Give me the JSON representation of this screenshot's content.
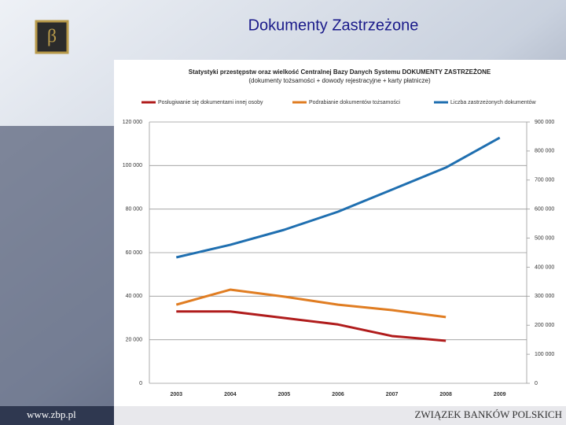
{
  "slide": {
    "title": "Dokumenty Zastrzeżone",
    "url": "www.zbp.pl",
    "footer": "Związek Banków Polskich"
  },
  "chart_data": {
    "type": "line",
    "title": "Statystyki przestępstw oraz wielkość Centralnej Bazy Danych Systemu DOKUMENTY ZASTRZEŻONE",
    "subtitle": "(dokumenty tożsamości + dowody rejestracyjne + karty płatnicze)",
    "categories": [
      "2003",
      "2004",
      "2005",
      "2006",
      "2007",
      "2008",
      "2009"
    ],
    "series": [
      {
        "name": "Posługiwanie się dokumentami innej osoby",
        "color": "#b01c1c",
        "values": [
          33000,
          33000,
          30000,
          27000,
          21700,
          19500,
          null
        ]
      },
      {
        "name": "Podrabianie dokumentów tożsamości",
        "color": "#e07d22",
        "values": [
          36100,
          43000,
          39800,
          36100,
          33600,
          30400,
          null
        ]
      },
      {
        "name": "Liczba zastrzeżonych dokumentów",
        "color": "#1f6fb0",
        "axis": "y2",
        "values": [
          433700,
          477000,
          528600,
          591000,
          667000,
          743000,
          846000
        ]
      }
    ],
    "ylim": [
      0,
      120000
    ],
    "yticks": [
      0,
      {
        "value": 20000,
        "label": "20 000"
      },
      {
        "value": 40000,
        "label": "40 000"
      },
      {
        "value": 60000,
        "label": "60 000"
      },
      {
        "value": 80000,
        "label": "80 000"
      },
      {
        "value": 100000,
        "label": "100 000"
      },
      {
        "value": 120000,
        "label": "120 000"
      }
    ],
    "y2lim": [
      0,
      900000
    ],
    "y2ticks": [
      0,
      {
        "value": 100000,
        "label": "100 000"
      },
      {
        "value": 200000,
        "label": "200 000"
      },
      {
        "value": 300000,
        "label": "300 000"
      },
      {
        "value": 400000,
        "label": "400 000"
      },
      {
        "value": 500000,
        "label": "500 000"
      },
      {
        "value": 600000,
        "label": "600 000"
      },
      {
        "value": 700000,
        "label": "700 000"
      },
      {
        "value": 800000,
        "label": "800 000"
      },
      {
        "value": 900000,
        "label": "900 000"
      }
    ],
    "grid": true
  }
}
